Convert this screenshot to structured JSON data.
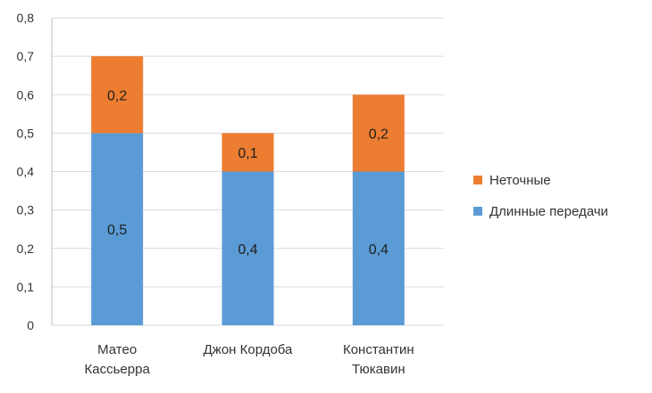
{
  "chart_data": {
    "type": "bar",
    "stacked": true,
    "categories": [
      [
        "Матео",
        "Кассьерра"
      ],
      [
        "Джон Кордоба"
      ],
      [
        "Константин",
        "Тюкавин"
      ]
    ],
    "series": [
      {
        "name": "Длинные передачи",
        "values": [
          0.5,
          0.4,
          0.4
        ],
        "labels": [
          "0,5",
          "0,4",
          "0,4"
        ],
        "color": "#5b9bd5"
      },
      {
        "name": "Неточные",
        "values": [
          0.2,
          0.1,
          0.2
        ],
        "labels": [
          "0,2",
          "0,1",
          "0,2"
        ],
        "color": "#ed7d31"
      }
    ],
    "ylim": [
      0,
      0.8
    ],
    "yticks": [
      0,
      0.1,
      0.2,
      0.3,
      0.4,
      0.5,
      0.6,
      0.7,
      0.8
    ],
    "ytick_labels": [
      "0",
      "0,1",
      "0,2",
      "0,3",
      "0,4",
      "0,5",
      "0,6",
      "0,7",
      "0,8"
    ],
    "grid": true,
    "legend_position": "right",
    "legend_order": [
      "Неточные",
      "Длинные передачи"
    ],
    "gridline_color": "#d9d9d9"
  }
}
